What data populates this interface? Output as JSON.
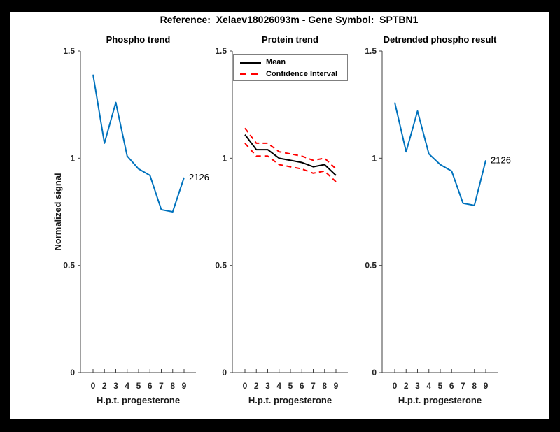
{
  "figure": {
    "title": "Reference:  Xelaev18026093m - Gene Symbol:  SPTBN1",
    "frame_color": "#000000",
    "background_color": "#ffffff",
    "accent_blue": "#0072BD",
    "accent_red": "#ff0000",
    "axis_color": "#262626"
  },
  "chart_data": [
    {
      "type": "line",
      "title": "Phospho trend",
      "xlabel": "H.p.t. progesterone",
      "ylabel": "Normalized signal",
      "x_categories": [
        "0",
        "2",
        "3",
        "4",
        "5",
        "6",
        "7",
        "8",
        "9"
      ],
      "ylim": [
        0,
        1.5
      ],
      "y_ticks": [
        0,
        0.5,
        1,
        1.5
      ],
      "y_tick_labels": [
        "0",
        "0.5",
        "1",
        "1.5"
      ],
      "grid": false,
      "series": [
        {
          "name": "phospho",
          "color": "#0072BD",
          "style": "solid",
          "values": [
            1.39,
            1.07,
            1.26,
            1.01,
            0.95,
            0.92,
            0.76,
            0.75,
            0.91
          ],
          "end_label": "2126"
        }
      ]
    },
    {
      "type": "line",
      "title": "Protein trend",
      "xlabel": "H.p.t. progesterone",
      "x_categories": [
        "0",
        "2",
        "3",
        "4",
        "5",
        "6",
        "7",
        "8",
        "9"
      ],
      "ylim": [
        0,
        1.5
      ],
      "y_ticks": [
        0,
        0.5,
        1,
        1.5
      ],
      "y_tick_labels": [
        "0",
        "0.5",
        "1",
        "1.5"
      ],
      "grid": false,
      "legend": {
        "position": "top-inside",
        "entries": [
          {
            "label": "Mean",
            "color": "#000000",
            "style": "solid"
          },
          {
            "label": "Confidence Interval",
            "color": "#ff0000",
            "style": "dashed"
          }
        ]
      },
      "series": [
        {
          "name": "ci-upper",
          "color": "#ff0000",
          "style": "dashed",
          "values": [
            1.14,
            1.07,
            1.07,
            1.03,
            1.02,
            1.01,
            0.99,
            1.0,
            0.95
          ]
        },
        {
          "name": "ci-lower",
          "color": "#ff0000",
          "style": "dashed",
          "values": [
            1.07,
            1.01,
            1.01,
            0.97,
            0.96,
            0.95,
            0.93,
            0.94,
            0.89
          ]
        },
        {
          "name": "mean",
          "color": "#000000",
          "style": "solid",
          "values": [
            1.11,
            1.04,
            1.04,
            1.0,
            0.99,
            0.98,
            0.96,
            0.97,
            0.92
          ]
        }
      ]
    },
    {
      "type": "line",
      "title": "Detrended phospho result",
      "xlabel": "H.p.t. progesterone",
      "x_categories": [
        "0",
        "2",
        "3",
        "4",
        "5",
        "6",
        "7",
        "8",
        "9"
      ],
      "ylim": [
        0,
        1.5
      ],
      "y_ticks": [
        0,
        0.5,
        1,
        1.5
      ],
      "y_tick_labels": [
        "0",
        "0.5",
        "1",
        "1.5"
      ],
      "grid": false,
      "series": [
        {
          "name": "detrended",
          "color": "#0072BD",
          "style": "solid",
          "values": [
            1.26,
            1.03,
            1.22,
            1.02,
            0.97,
            0.94,
            0.79,
            0.78,
            0.99
          ],
          "end_label": "2126"
        }
      ]
    }
  ]
}
